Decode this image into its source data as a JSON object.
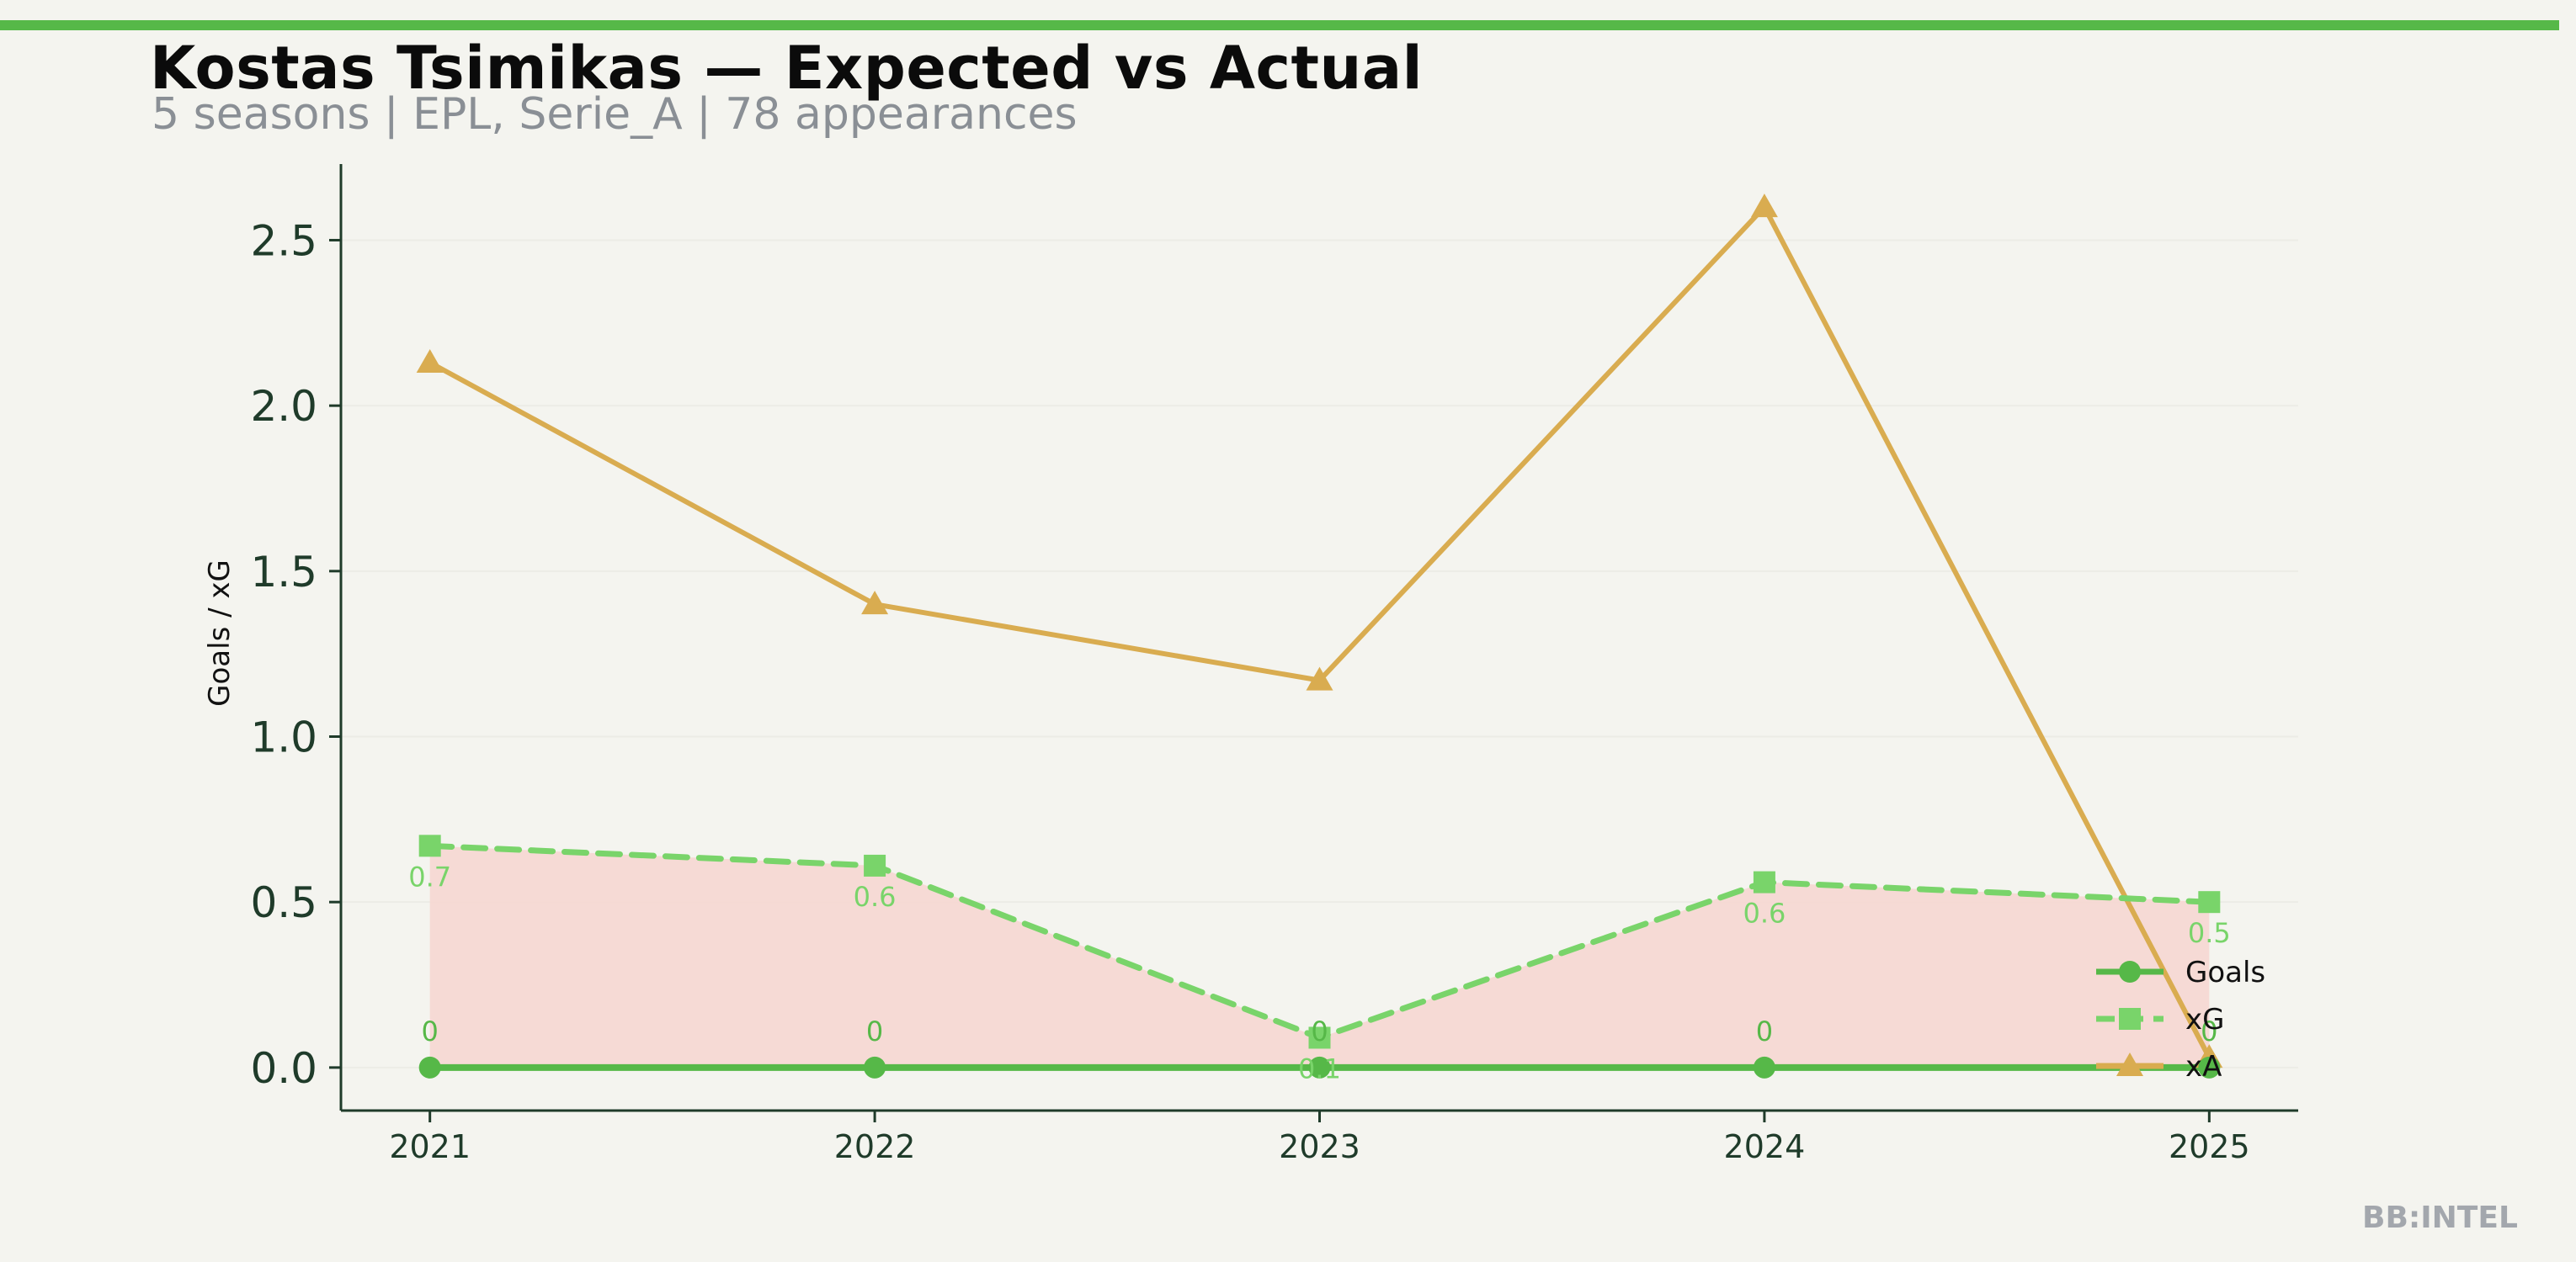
{
  "header": {
    "title": "Kostas Tsimikas — Expected vs Actual",
    "subtitle": "5 seasons | EPL, Serie_A | 78 appearances",
    "accent_color": "#56b848"
  },
  "footer": {
    "watermark": "BB:INTEL"
  },
  "colors": {
    "background": "#f4f4ef",
    "axis": "#1f3b2a",
    "goals": "#56b848",
    "xg": "#79d46a",
    "xa": "#d9ac50",
    "fill_gap": "#f6d8d3",
    "grid": "#ecece6"
  },
  "chart_data": {
    "type": "line",
    "title": "Kostas Tsimikas — Expected vs Actual",
    "subtitle": "5 seasons | EPL, Serie_A | 78 appearances",
    "xlabel": "",
    "ylabel": "Goals / xG",
    "x": [
      2021,
      2022,
      2023,
      2024,
      2025
    ],
    "ylim": [
      -0.13,
      2.73
    ],
    "xlim": [
      2020.8,
      2025.2
    ],
    "y_ticks": [
      0.0,
      0.5,
      1.0,
      1.5,
      2.0,
      2.5
    ],
    "y_tick_labels": [
      "0.0",
      "0.5",
      "1.0",
      "1.5",
      "2.0",
      "2.5"
    ],
    "x_tick_labels": [
      "2021",
      "2022",
      "2023",
      "2024",
      "2025"
    ],
    "grid": "horizontal, faint",
    "legend_position": "lower-right",
    "fill_between": "goals-xg",
    "series": [
      {
        "name": "Goals",
        "values": [
          0,
          0,
          0,
          0,
          0
        ],
        "data_labels": [
          "0",
          "0",
          "0",
          "0",
          "0"
        ],
        "marker": "circle",
        "line_style": "solid"
      },
      {
        "name": "xG",
        "values": [
          0.67,
          0.61,
          0.09,
          0.56,
          0.5
        ],
        "data_labels": [
          "0.7",
          "0.6",
          "0.1",
          "0.6",
          "0.5"
        ],
        "marker": "square",
        "line_style": "dashed"
      },
      {
        "name": "xA",
        "values": [
          2.13,
          1.4,
          1.17,
          2.6,
          0.03
        ],
        "marker": "triangle",
        "line_style": "solid"
      }
    ]
  }
}
